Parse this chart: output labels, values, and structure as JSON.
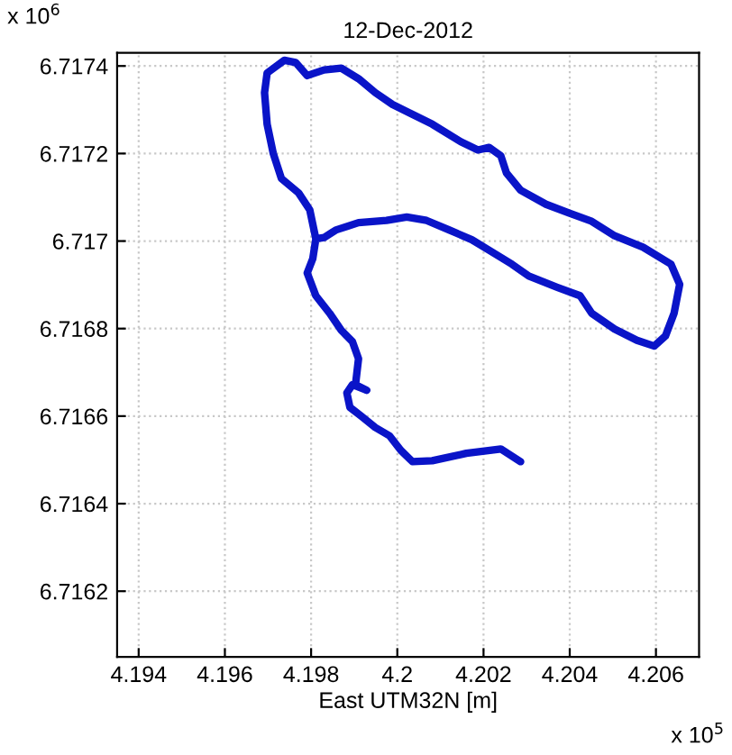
{
  "chart_data": {
    "type": "line",
    "title": "12-Dec-2012",
    "xlabel": "East UTM32N [m]",
    "annotations": [
      "x 10$^{5}$",
      "x 10$^{6}$"
    ],
    "xlim": [
      4.1935,
      4.207
    ],
    "ylim": [
      6.71605,
      6.71743
    ],
    "xticks": [
      4.194,
      4.196,
      4.198,
      4.2,
      4.202,
      4.204,
      4.206
    ],
    "yticks": [
      6.7162,
      6.7164,
      6.7166,
      6.7168,
      6.717,
      6.7172,
      6.7174
    ],
    "grid": true,
    "marker": "none",
    "line_style": "solid",
    "series": [
      {
        "color": "#0a14c8",
        "x": [
          4.20286,
          4.2024,
          4.2016,
          4.20081,
          4.20035,
          4.20008,
          4.19982,
          4.19949,
          4.19916,
          4.1989,
          4.19883,
          4.19896,
          4.19929,
          4.19903,
          4.1991,
          4.19896,
          4.1987,
          4.19843,
          4.19811,
          4.19791,
          4.19804,
          4.19811,
          4.19797,
          4.19771,
          4.19731,
          4.19712,
          4.19698,
          4.19692,
          4.19698,
          4.19738,
          4.19764,
          4.19791,
          4.1983,
          4.1987,
          4.1991,
          4.19949,
          4.19989,
          4.20028,
          4.20081,
          4.20147,
          4.20187,
          4.20213,
          4.2024,
          4.20253,
          4.20286,
          4.20345,
          4.20398,
          4.20451,
          4.20504,
          4.2057,
          4.20635,
          4.20655,
          4.20642,
          4.20622,
          4.20596,
          4.20556,
          4.20504,
          4.20451,
          4.20424,
          4.20372,
          4.20305,
          4.20266,
          4.20213,
          4.20173,
          4.20121,
          4.20068,
          4.20022,
          4.19975,
          4.1991,
          4.19857,
          4.1983,
          4.19811
        ],
        "values": [
          6.716496,
          6.716525,
          6.716515,
          6.716498,
          6.716496,
          6.716522,
          6.716555,
          6.716574,
          6.7166,
          6.71662,
          6.716653,
          6.716672,
          6.716659,
          6.716672,
          6.716731,
          6.71677,
          6.716796,
          6.716835,
          6.716875,
          6.716927,
          6.71696,
          6.717005,
          6.717071,
          6.71711,
          6.717143,
          6.717201,
          6.717267,
          6.717339,
          6.717384,
          6.717413,
          6.717408,
          6.717378,
          6.717391,
          6.717395,
          6.717371,
          6.717339,
          6.717312,
          6.717293,
          6.717267,
          6.717227,
          6.717208,
          6.717214,
          6.717195,
          6.717156,
          6.717116,
          6.717084,
          6.717064,
          6.717045,
          6.717012,
          6.716986,
          6.716947,
          6.716901,
          6.716835,
          6.716783,
          6.71676,
          6.716773,
          6.716799,
          6.716835,
          6.716875,
          6.716894,
          6.71692,
          6.716947,
          6.716979,
          6.717003,
          6.717025,
          6.717047,
          6.717055,
          6.717047,
          6.717042,
          6.717025,
          6.717008,
          6.717005
        ]
      }
    ]
  }
}
